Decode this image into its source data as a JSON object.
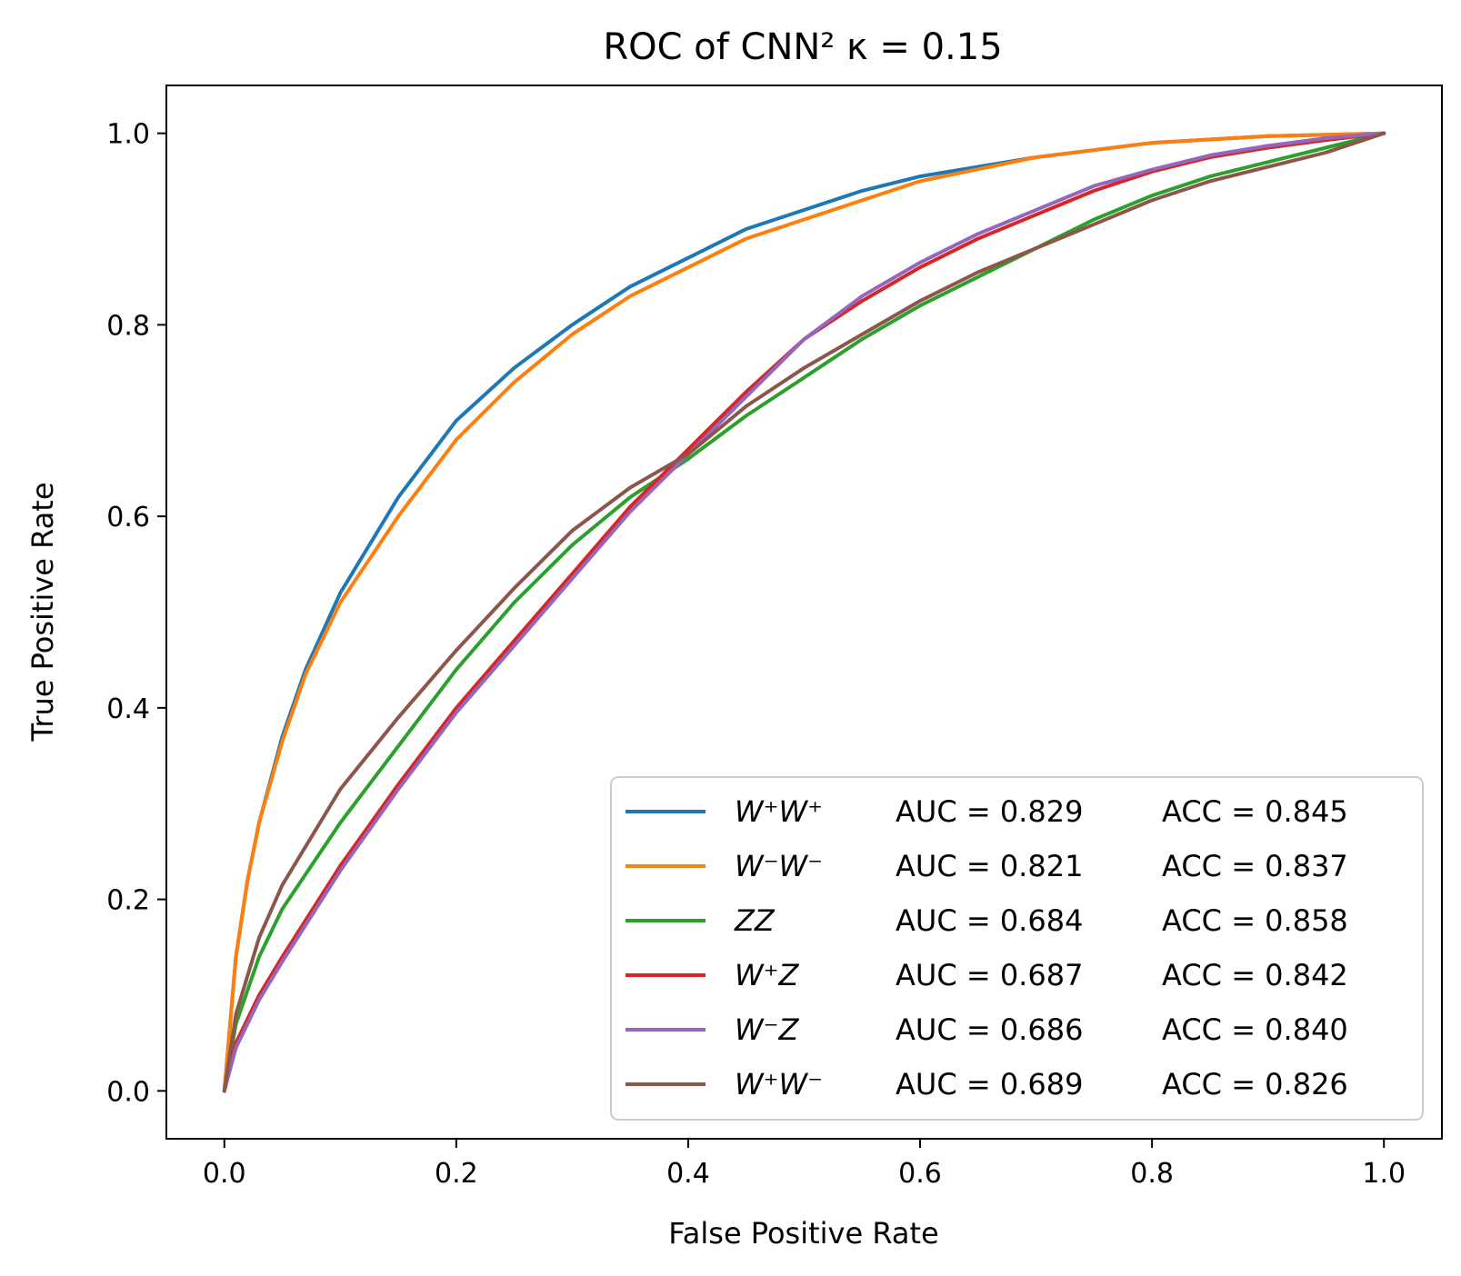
{
  "chart_data": {
    "type": "line",
    "title": "ROC of CNN² κ = 0.15",
    "xlabel": "False Positive Rate",
    "ylabel": "True Positive Rate",
    "xlim": [
      -0.05,
      1.05
    ],
    "ylim": [
      -0.05,
      1.05
    ],
    "xticks": [
      "0.0",
      "0.2",
      "0.4",
      "0.6",
      "0.8",
      "1.0"
    ],
    "yticks": [
      "0.0",
      "0.2",
      "0.4",
      "0.6",
      "0.8",
      "1.0"
    ],
    "grid": false,
    "legend_position": "lower-right",
    "series": [
      {
        "name": "W⁺W⁺",
        "color": "#1f77b4",
        "auc": "AUC = 0.829",
        "acc": "ACC = 0.845",
        "x": [
          0,
          0.01,
          0.02,
          0.03,
          0.05,
          0.07,
          0.1,
          0.15,
          0.2,
          0.25,
          0.3,
          0.35,
          0.4,
          0.45,
          0.5,
          0.55,
          0.6,
          0.7,
          0.8,
          0.9,
          1.0
        ],
        "y": [
          0,
          0.14,
          0.22,
          0.28,
          0.37,
          0.44,
          0.52,
          0.62,
          0.7,
          0.755,
          0.8,
          0.84,
          0.87,
          0.9,
          0.92,
          0.94,
          0.955,
          0.975,
          0.99,
          0.997,
          1.0
        ]
      },
      {
        "name": "W⁻W⁻",
        "color": "#ff7f0e",
        "auc": "AUC = 0.821",
        "acc": "ACC = 0.837",
        "x": [
          0,
          0.01,
          0.02,
          0.03,
          0.05,
          0.07,
          0.1,
          0.15,
          0.2,
          0.25,
          0.3,
          0.35,
          0.4,
          0.45,
          0.5,
          0.55,
          0.6,
          0.7,
          0.8,
          0.9,
          1.0
        ],
        "y": [
          0,
          0.14,
          0.22,
          0.28,
          0.365,
          0.435,
          0.51,
          0.6,
          0.68,
          0.74,
          0.79,
          0.83,
          0.86,
          0.89,
          0.91,
          0.93,
          0.95,
          0.975,
          0.99,
          0.997,
          1.0
        ]
      },
      {
        "name": "ZZ",
        "color": "#2ca02c",
        "auc": "AUC = 0.684",
        "acc": "ACC = 0.858",
        "x": [
          0,
          0.01,
          0.03,
          0.05,
          0.1,
          0.15,
          0.2,
          0.25,
          0.3,
          0.35,
          0.4,
          0.45,
          0.5,
          0.55,
          0.6,
          0.65,
          0.7,
          0.75,
          0.8,
          0.85,
          0.9,
          0.95,
          1.0
        ],
        "y": [
          0,
          0.07,
          0.14,
          0.19,
          0.28,
          0.36,
          0.44,
          0.51,
          0.57,
          0.62,
          0.66,
          0.705,
          0.745,
          0.785,
          0.82,
          0.85,
          0.88,
          0.91,
          0.935,
          0.955,
          0.97,
          0.985,
          1.0
        ]
      },
      {
        "name": "W⁺Z",
        "color": "#d62728",
        "auc": "AUC = 0.687",
        "acc": "ACC = 0.842",
        "x": [
          0,
          0.01,
          0.03,
          0.05,
          0.1,
          0.15,
          0.2,
          0.25,
          0.3,
          0.35,
          0.4,
          0.45,
          0.5,
          0.55,
          0.6,
          0.65,
          0.7,
          0.75,
          0.8,
          0.85,
          0.9,
          0.95,
          1.0
        ],
        "y": [
          0,
          0.05,
          0.1,
          0.14,
          0.235,
          0.32,
          0.4,
          0.47,
          0.54,
          0.61,
          0.67,
          0.73,
          0.785,
          0.825,
          0.86,
          0.89,
          0.915,
          0.94,
          0.96,
          0.975,
          0.985,
          0.993,
          1.0
        ]
      },
      {
        "name": "W⁻Z",
        "color": "#9467bd",
        "auc": "AUC = 0.686",
        "acc": "ACC = 0.840",
        "x": [
          0,
          0.01,
          0.03,
          0.05,
          0.1,
          0.15,
          0.2,
          0.25,
          0.3,
          0.35,
          0.4,
          0.45,
          0.5,
          0.55,
          0.6,
          0.65,
          0.7,
          0.75,
          0.8,
          0.85,
          0.9,
          0.95,
          1.0
        ],
        "y": [
          0,
          0.045,
          0.095,
          0.135,
          0.23,
          0.315,
          0.395,
          0.465,
          0.535,
          0.605,
          0.665,
          0.725,
          0.785,
          0.83,
          0.865,
          0.895,
          0.92,
          0.945,
          0.962,
          0.977,
          0.987,
          0.995,
          1.0
        ]
      },
      {
        "name": "W⁺W⁻",
        "color": "#8c564b",
        "auc": "AUC = 0.689",
        "acc": "ACC = 0.826",
        "x": [
          0,
          0.01,
          0.03,
          0.05,
          0.1,
          0.15,
          0.2,
          0.25,
          0.3,
          0.35,
          0.4,
          0.45,
          0.5,
          0.55,
          0.6,
          0.65,
          0.7,
          0.75,
          0.8,
          0.85,
          0.9,
          0.95,
          1.0
        ],
        "y": [
          0,
          0.08,
          0.16,
          0.215,
          0.315,
          0.39,
          0.46,
          0.525,
          0.585,
          0.63,
          0.665,
          0.715,
          0.755,
          0.79,
          0.825,
          0.855,
          0.88,
          0.905,
          0.93,
          0.95,
          0.965,
          0.98,
          1.0
        ]
      }
    ]
  }
}
